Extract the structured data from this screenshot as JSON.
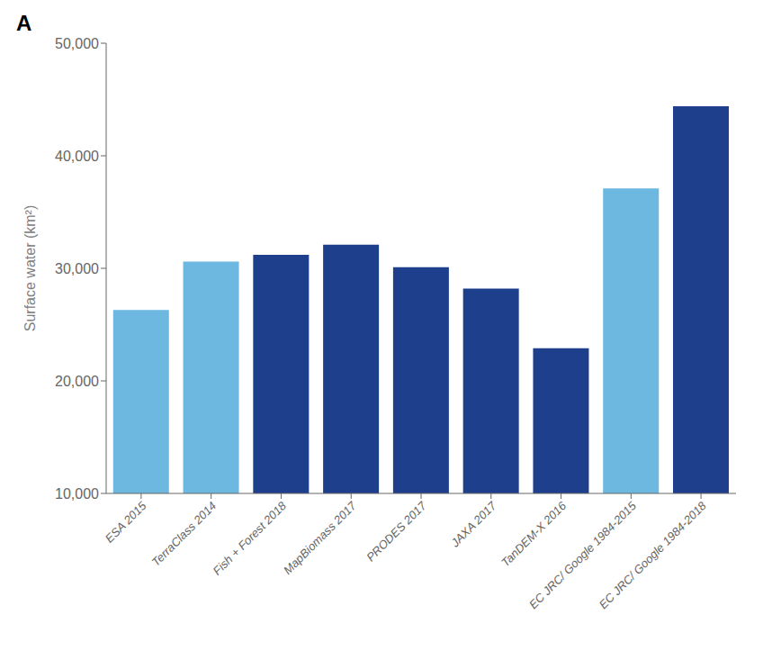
{
  "chart_data": {
    "type": "bar",
    "annotations": [
      "A"
    ],
    "categories": [
      "ESA 2015",
      "TerraClass 2014",
      "Fish + Forest 2018",
      "MapBiomass 2017",
      "PRODES 2017",
      "JAXA 2017",
      "TanDEM-X 2016",
      "EC JRC/ Google 1984-2015",
      "EC JRC/ Google 1984-2018"
    ],
    "values": [
      26300,
      30600,
      31200,
      32100,
      30100,
      28200,
      22900,
      37100,
      44400
    ],
    "colors": [
      "#6cb8e0",
      "#6cb8e0",
      "#1e3f8c",
      "#1e3f8c",
      "#1e3f8c",
      "#1e3f8c",
      "#1e3f8c",
      "#6cb8e0",
      "#1e3f8c"
    ],
    "y_label": "Surface water (km²)",
    "ylim": [
      10000,
      50000
    ],
    "yticks": [
      {
        "value": 10000,
        "label": "10,000"
      },
      {
        "value": 20000,
        "label": "20,000"
      },
      {
        "value": 30000,
        "label": "30,000"
      },
      {
        "value": 40000,
        "label": "40,000"
      },
      {
        "value": 50000,
        "label": "50,000"
      }
    ],
    "grid": false
  }
}
